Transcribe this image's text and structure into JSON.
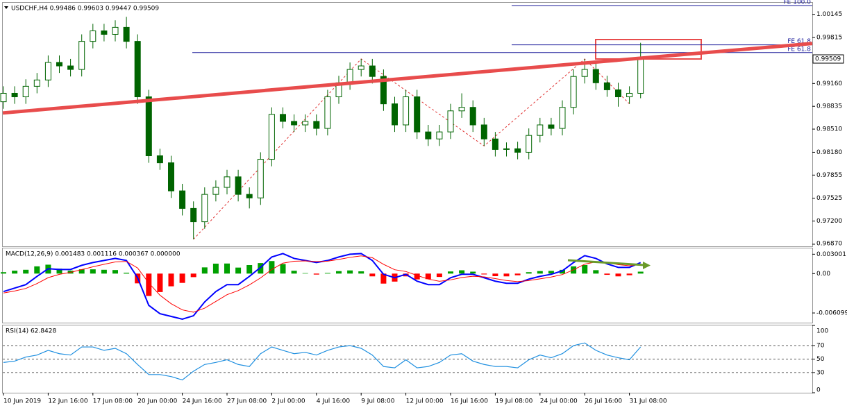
{
  "chart_data": [
    {
      "type": "candlestick",
      "title": "USDCHF,H4 0.99486 0.99603 0.99447 0.99509",
      "categories": [
        "10 Jun 2019",
        null,
        null,
        null,
        "12 Jun 16:00",
        null,
        null,
        null,
        "17 Jun 08:00",
        null,
        null,
        null,
        "20 Jun 00:00",
        null,
        null,
        null,
        "24 Jun 16:00",
        null,
        null,
        null,
        "27 Jun 08:00",
        null,
        null,
        null,
        "2 Jul 00:00",
        null,
        null,
        null,
        "4 Jul 16:00",
        null,
        null,
        null,
        "9 Jul 08:00",
        null,
        null,
        null,
        "12 Jul 00:00",
        null,
        null,
        null,
        "16 Jul 16:00",
        null,
        null,
        null,
        "19 Jul 08:00",
        null,
        null,
        null,
        "24 Jul 00:00",
        null,
        null,
        null,
        "26 Jul 16:00",
        null,
        null,
        null,
        "31 Jul 08:00",
        null
      ],
      "open": [
        0.989,
        0.9902,
        0.9897,
        0.9912,
        0.9921,
        0.9946,
        0.9941,
        0.9936,
        0.9976,
        0.9991,
        0.9986,
        0.9996,
        0.9976,
        0.9897,
        0.9813,
        0.9803,
        0.9763,
        0.9738,
        0.9719,
        0.9758,
        0.9768,
        0.9783,
        0.9758,
        0.9753,
        0.9808,
        0.9872,
        0.9862,
        0.9857,
        0.9862,
        0.9852,
        0.9897,
        0.9917,
        0.9936,
        0.9941,
        0.9926,
        0.9887,
        0.9857,
        0.9897,
        0.9847,
        0.9837,
        0.9847,
        0.9877,
        0.9882,
        0.9857,
        0.9837,
        0.9822,
        0.9823,
        0.9818,
        0.9842,
        0.9857,
        0.9852,
        0.9882,
        0.9926,
        0.9936,
        0.9917,
        0.9907,
        0.9897,
        0.9902
      ],
      "high": [
        0.9912,
        0.9912,
        0.9922,
        0.9931,
        0.9956,
        0.9956,
        0.9951,
        0.9986,
        1.0001,
        1.0001,
        1.0006,
        1.0011,
        0.9986,
        0.9907,
        0.9823,
        0.9813,
        0.9773,
        0.9748,
        0.9768,
        0.9778,
        0.9793,
        0.9793,
        0.9768,
        0.9818,
        0.9882,
        0.9882,
        0.9872,
        0.9872,
        0.9872,
        0.9907,
        0.9927,
        0.9946,
        0.9951,
        0.9951,
        0.9936,
        0.9897,
        0.9907,
        0.9907,
        0.9857,
        0.9857,
        0.9887,
        0.9902,
        0.9892,
        0.9867,
        0.9847,
        0.9832,
        0.9833,
        0.9852,
        0.9867,
        0.9867,
        0.9892,
        0.9936,
        0.9951,
        0.9946,
        0.9927,
        0.9917,
        0.9912,
        0.9974
      ],
      "low": [
        0.988,
        0.9887,
        0.9887,
        0.9902,
        0.9911,
        0.9931,
        0.9926,
        0.9926,
        0.9966,
        0.9976,
        0.9976,
        0.9966,
        0.9887,
        0.9803,
        0.9793,
        0.9753,
        0.9728,
        0.9694,
        0.9709,
        0.9748,
        0.9758,
        0.9748,
        0.9738,
        0.9743,
        0.9798,
        0.9852,
        0.9847,
        0.9847,
        0.9842,
        0.9842,
        0.9887,
        0.9907,
        0.9926,
        0.9916,
        0.9877,
        0.9847,
        0.9847,
        0.9837,
        0.9827,
        0.9827,
        0.9837,
        0.9867,
        0.9847,
        0.9827,
        0.9812,
        0.9812,
        0.9808,
        0.9808,
        0.9832,
        0.9842,
        0.9842,
        0.9872,
        0.9916,
        0.9907,
        0.9897,
        0.9883,
        0.9887,
        0.9895
      ],
      "close": [
        0.9902,
        0.9897,
        0.9912,
        0.9921,
        0.9946,
        0.9941,
        0.9936,
        0.9976,
        0.9991,
        0.9986,
        0.9996,
        0.9976,
        0.9897,
        0.9813,
        0.9803,
        0.9763,
        0.9738,
        0.9719,
        0.9758,
        0.9768,
        0.9783,
        0.9758,
        0.9753,
        0.9808,
        0.9872,
        0.9862,
        0.9857,
        0.9862,
        0.9852,
        0.9897,
        0.9917,
        0.9936,
        0.9941,
        0.9926,
        0.9887,
        0.9857,
        0.9897,
        0.9847,
        0.9837,
        0.9847,
        0.9877,
        0.9882,
        0.9857,
        0.9837,
        0.9822,
        0.9823,
        0.9818,
        0.9842,
        0.9857,
        0.9852,
        0.9882,
        0.9926,
        0.9936,
        0.9917,
        0.9907,
        0.9897,
        0.9902,
        0.9951
      ],
      "up_color": "#ffffff",
      "down_color": "#006400",
      "wick_color": "#006400",
      "ylim": [
        0.9684,
        1.003
      ],
      "yticks": [
        1.00145,
        0.99815,
        {
          "value": 0.9916,
          "label": "0.99160"
        },
        0.98835,
        {
          "value": 0.9851,
          "label": "0.98510"
        },
        {
          "value": 0.9818,
          "label": "0.98180"
        },
        0.97855,
        0.97525,
        {
          "value": 0.972,
          "label": "0.97200"
        },
        {
          "value": 0.9687,
          "label": "0.96870"
        }
      ],
      "last_price": 0.99509,
      "trendline": {
        "color": "#e84c4c",
        "values": [
          0.9874,
          0.9973
        ]
      },
      "zigzag_color": "#e03030",
      "fibo_color": "#1a1a9a",
      "fibo_levels": [
        {
          "label": "FE 100.0",
          "value": 1.0027
        },
        {
          "label": "FE 61.8",
          "value": 0.9971
        },
        {
          "label": "FE 61.8",
          "value": 0.996
        }
      ]
    },
    {
      "type": "macd",
      "title": "MACD(12,26,9) 0.001483 0.001116 0.000367 0.000000",
      "ylim": [
        -0.0076,
        0.0039
      ],
      "yticks": [
        0.003001,
        {
          "value": 0,
          "label": "0.00"
        },
        -0.006099
      ],
      "histogram": {
        "up_color": "#00a000",
        "down_color": "#ff0000",
        "values": [
          0.00022,
          0.00045,
          0.00059,
          0.00112,
          0.00138,
          0.00076,
          0.00045,
          0.00066,
          0.00066,
          0.00059,
          0.00055,
          0.00014,
          -0.00151,
          -0.00347,
          -0.00286,
          -0.00197,
          -0.00144,
          -0.00055,
          0.00096,
          0.00154,
          0.00156,
          0.00093,
          0.00132,
          0.00163,
          0.00194,
          0.00148,
          0.00044,
          7e-05,
          -0.00015,
          0.0001,
          0.00038,
          0.00049,
          0.00035,
          -0.00043,
          -0.00155,
          -0.00124,
          -0.00043,
          -0.0009,
          -0.00086,
          -0.00052,
          0.00033,
          0.00051,
          0.0003,
          -0.00013,
          -0.0004,
          -0.00043,
          -0.00026,
          0.00022,
          0.00039,
          0.00042,
          0.00058,
          0.00112,
          0.00132,
          0.00053,
          -0.00019,
          -0.00043,
          -0.00025,
          0.0003
        ]
      },
      "series": [
        {
          "color": "#0000ff",
          "values": [
            -0.00278,
            -0.00225,
            -0.00171,
            -0.00043,
            0.00075,
            0.00064,
            0.00064,
            0.00128,
            0.00171,
            0.00203,
            0.00235,
            0.00203,
            -0.00064,
            -0.00492,
            -0.00621,
            -0.00663,
            -0.00706,
            -0.00653,
            -0.00439,
            -0.00278,
            -0.00171,
            -0.00171,
            -0.00043,
            0.00096,
            0.00257,
            0.0031,
            0.00235,
            0.00203,
            0.00171,
            0.00203,
            0.00257,
            0.003,
            0.0031,
            0.00203,
            -0.00011,
            -0.00064,
            -0.00011,
            -0.00118,
            -0.00171,
            -0.00171,
            -0.00064,
            -0.00011,
            -0.00011,
            -0.00064,
            -0.00118,
            -0.0015,
            -0.0015,
            -0.00086,
            -0.00043,
            -0.00011,
            0.00043,
            0.00171,
            0.00278,
            0.00235,
            0.0015,
            0.00096,
            0.00096,
            0.00171
          ]
        },
        {
          "color": "#ff0000",
          "values": [
            -0.003,
            -0.0027,
            -0.0023,
            -0.00155,
            -0.00063,
            -0.00012,
            0.00019,
            0.00062,
            0.00105,
            0.00144,
            0.0018,
            0.00189,
            0.00087,
            -0.00145,
            -0.00335,
            -0.00466,
            -0.00562,
            -0.00598,
            -0.00535,
            -0.00432,
            -0.00327,
            -0.00264,
            -0.00175,
            -0.00067,
            0.00063,
            0.00162,
            0.00191,
            0.00196,
            0.00186,
            0.00193,
            0.00219,
            0.00251,
            0.00275,
            0.00246,
            0.00144,
            0.0006,
            0.00032,
            -0.00028,
            -0.00085,
            -0.00119,
            -0.00097,
            -0.00062,
            -0.00041,
            -0.00051,
            -0.00078,
            -0.00107,
            -0.00124,
            -0.00108,
            -0.00082,
            -0.00053,
            -0.00015,
            0.00059,
            0.00146,
            0.00182,
            0.00169,
            0.00139,
            0.00121,
            0.00141
          ]
        }
      ]
    },
    {
      "type": "rsi",
      "title": "RSI(14) 62.8428",
      "ylim": [
        0,
        100
      ],
      "yticks": [
        100,
        70,
        50,
        30,
        0
      ],
      "levels": [
        70,
        50,
        30
      ],
      "series": [
        {
          "color": "#1e8fe0",
          "values": [
            45,
            47,
            53,
            56,
            63,
            58,
            56,
            68,
            68,
            63,
            66,
            58,
            42,
            27,
            27,
            24,
            19,
            32,
            42,
            45,
            49,
            42,
            39,
            58,
            68,
            63,
            58,
            60,
            56,
            63,
            68,
            70,
            66,
            56,
            39,
            37,
            49,
            37,
            39,
            45,
            56,
            58,
            47,
            42,
            39,
            39,
            37,
            49,
            56,
            52,
            58,
            70,
            74,
            63,
            56,
            52,
            49,
            68
          ]
        }
      ]
    }
  ]
}
